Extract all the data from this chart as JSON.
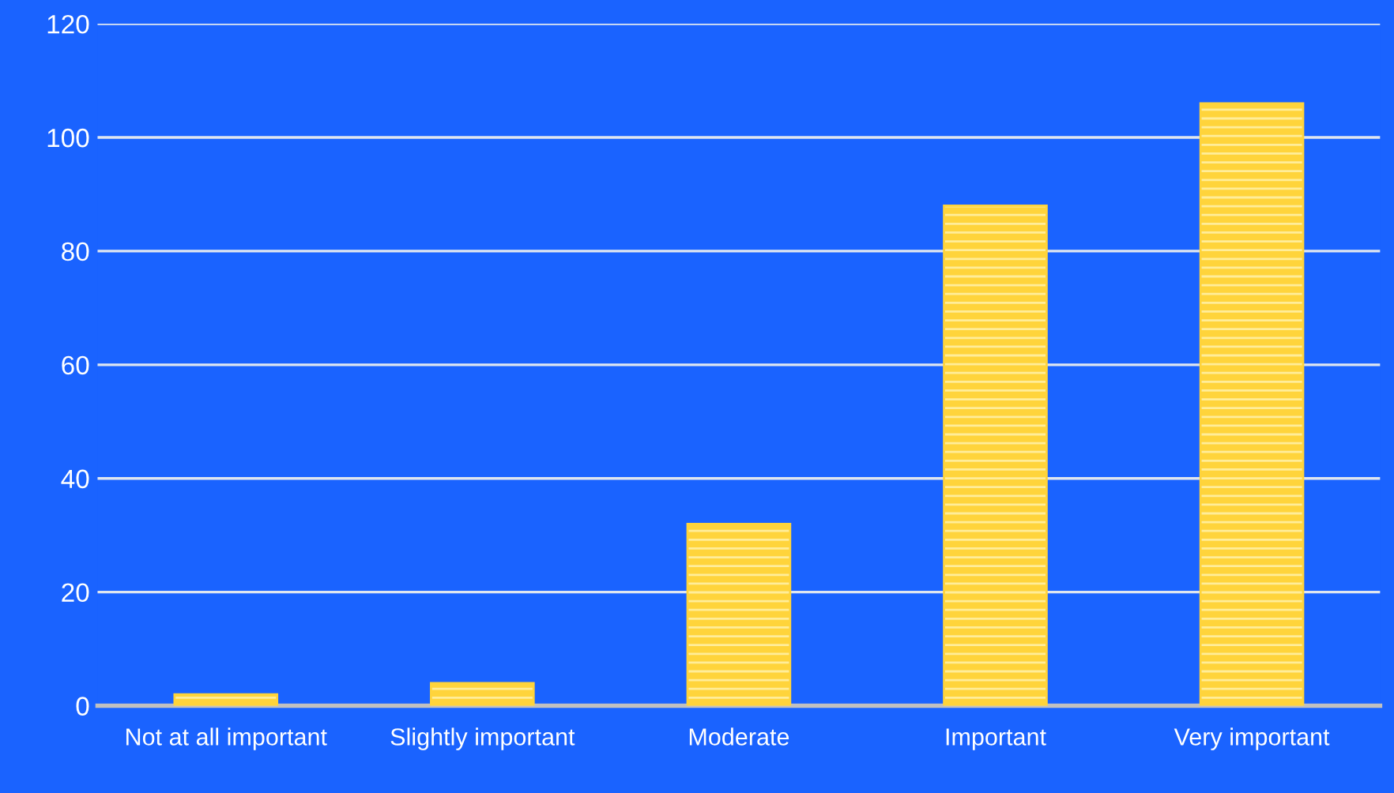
{
  "chart_data": {
    "type": "bar",
    "categories": [
      "Not at all important",
      "Slightly important",
      "Moderate",
      "Important",
      "Very important"
    ],
    "values": [
      2,
      4,
      32,
      88,
      106
    ],
    "color": "#ffd43b",
    "ylim": [
      0,
      120
    ],
    "yticks": [
      0,
      20,
      40,
      60,
      80,
      100,
      120
    ],
    "grid": "y"
  }
}
